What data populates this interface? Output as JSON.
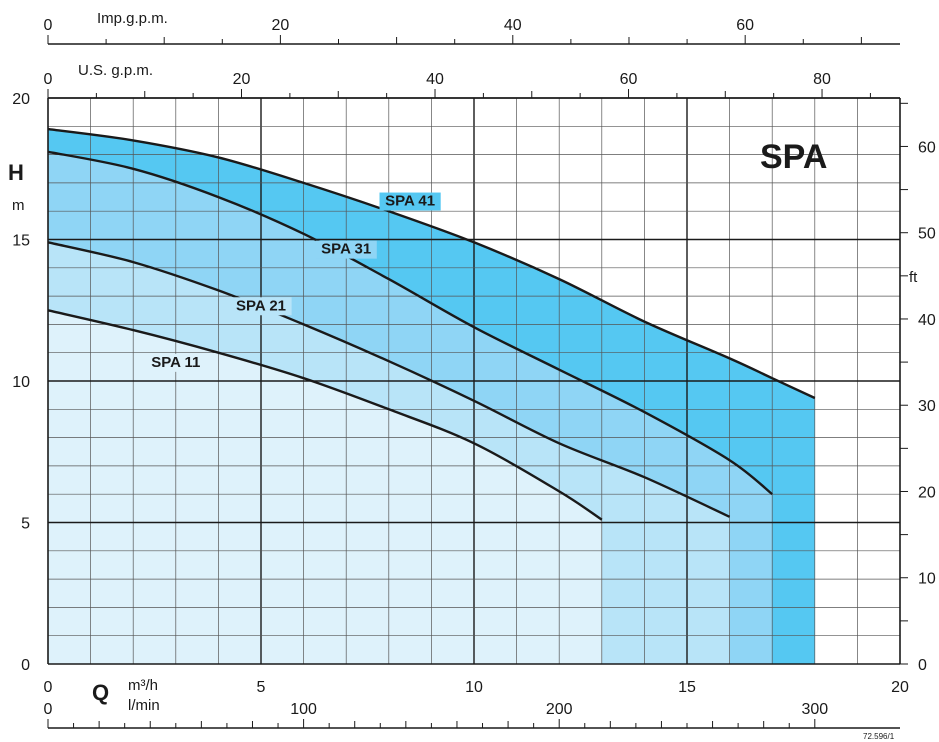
{
  "chart_data": {
    "type": "area",
    "title": "SPA",
    "code": "72.596/1",
    "x_axis": {
      "symbol": "Q",
      "unit": "m³/h",
      "range": [
        0,
        20
      ],
      "ticks": [
        0,
        5,
        10,
        15,
        20
      ],
      "minor_step": 1
    },
    "y_axis": {
      "symbol": "H",
      "unit": "m",
      "range": [
        0,
        20
      ],
      "ticks": [
        0,
        5,
        10,
        15,
        20
      ],
      "minor_step": 1
    },
    "secondary_axes": {
      "l_min": {
        "unit": "l/min",
        "max": 300,
        "ticks": [
          0,
          100,
          200,
          300
        ],
        "minor_step": 10,
        "per_m3h": 16.6667
      },
      "us_gpm": {
        "unit": "U.S. g.p.m.",
        "max": 85,
        "ticks": [
          0,
          20,
          40,
          60,
          80
        ],
        "minor_step": 5,
        "per_m3h": 4.4029
      },
      "imp_gpm": {
        "unit": "Imp.g.p.m.",
        "max": 70,
        "ticks": [
          0,
          20,
          40,
          60
        ],
        "minor_step": 5,
        "per_m3h": 3.6662
      },
      "ft": {
        "unit": "ft",
        "max": 65,
        "ticks": [
          0,
          10,
          20,
          30,
          40,
          50,
          60
        ],
        "minor_step": 5,
        "per_m": 3.28084
      }
    },
    "series": [
      {
        "name": "SPA 41",
        "color": "#55c8f2",
        "label_at": [
          8.5,
          16.2
        ],
        "x": [
          0,
          2,
          4,
          6,
          8,
          10,
          12,
          14,
          16,
          17,
          18
        ],
        "y": [
          18.9,
          18.5,
          17.9,
          17.0,
          16.0,
          14.9,
          13.6,
          12.1,
          10.8,
          10.1,
          9.4
        ]
      },
      {
        "name": "SPA 31",
        "color": "#8fd5f5",
        "label_at": [
          7.0,
          14.5
        ],
        "x": [
          0,
          2,
          4,
          6,
          8,
          10,
          12,
          14,
          16,
          17
        ],
        "y": [
          18.1,
          17.5,
          16.5,
          15.2,
          13.6,
          11.9,
          10.4,
          8.9,
          7.2,
          6.0
        ]
      },
      {
        "name": "SPA 21",
        "color": "#b8e4f8",
        "label_at": [
          5.0,
          12.5
        ],
        "x": [
          0,
          2,
          4,
          6,
          8,
          10,
          12,
          14,
          16
        ],
        "y": [
          14.9,
          14.2,
          13.2,
          12.0,
          10.7,
          9.3,
          7.8,
          6.6,
          5.2
        ]
      },
      {
        "name": "SPA 11",
        "color": "#def2fb",
        "label_at": [
          3.0,
          10.5
        ],
        "x": [
          0,
          2,
          4,
          6,
          8,
          10,
          12,
          13
        ],
        "y": [
          12.5,
          11.8,
          11.0,
          10.1,
          9.0,
          7.8,
          6.1,
          5.1
        ]
      }
    ]
  }
}
